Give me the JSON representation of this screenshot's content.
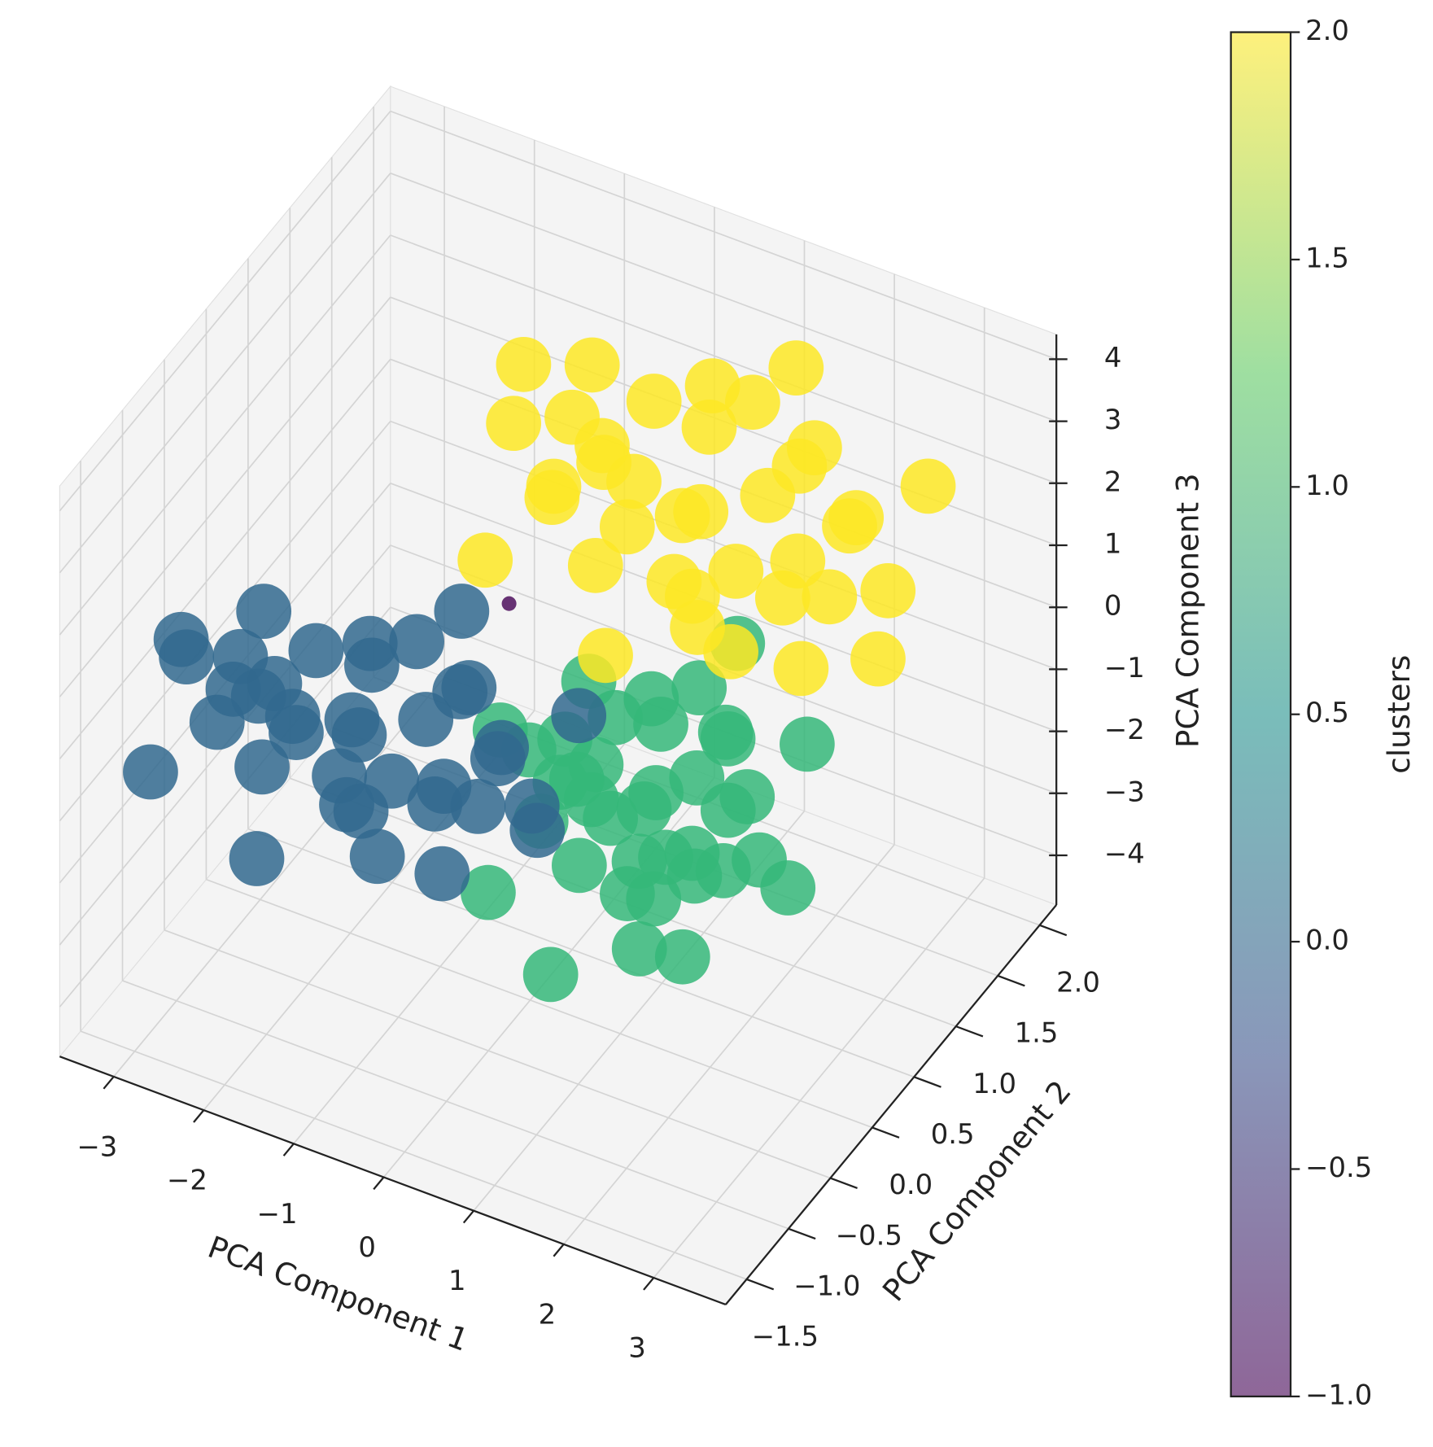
{
  "chart_data": {
    "type": "scatter3d",
    "xlabel": "PCA Component 1",
    "ylabel": "PCA Component 2",
    "zlabel": "PCA Component 3",
    "xlim": [
      -3.6,
      3.8
    ],
    "ylim": [
      -1.75,
      2.2
    ],
    "zlim": [
      -4.8,
      4.4
    ],
    "xticks": [
      {
        "value": -3,
        "label": "−3"
      },
      {
        "value": -2,
        "label": "−2"
      },
      {
        "value": -1,
        "label": "−1"
      },
      0,
      1,
      2,
      3
    ],
    "yticks": [
      {
        "value": -1.5,
        "label": "−1.5"
      },
      {
        "value": -1.0,
        "label": "−1.0"
      },
      {
        "value": -0.5,
        "label": "−0.5"
      },
      {
        "value": 0.0,
        "label": "0.0"
      },
      {
        "value": 0.5,
        "label": "0.5"
      },
      {
        "value": 1.0,
        "label": "1.0"
      },
      {
        "value": 1.5,
        "label": "1.5"
      },
      {
        "value": 2.0,
        "label": "2.0"
      }
    ],
    "zticks": [
      {
        "value": -4,
        "label": "−4"
      },
      {
        "value": -3,
        "label": "−3"
      },
      {
        "value": -2,
        "label": "−2"
      },
      {
        "value": -1,
        "label": "−1"
      },
      0,
      1,
      2,
      3,
      4
    ],
    "grid": true,
    "colorbar": {
      "label": "clusters",
      "lim": [
        -1.0,
        2.0
      ],
      "ticks": [
        {
          "value": -1.0,
          "label": "−1.0"
        },
        {
          "value": -0.5,
          "label": "−0.5"
        },
        {
          "value": 0.0,
          "label": "0.0"
        },
        {
          "value": 0.5,
          "label": "0.5"
        },
        {
          "value": 1.0,
          "label": "1.0"
        },
        {
          "value": 1.5,
          "label": "1.5"
        },
        {
          "value": 2.0,
          "label": "2.0"
        }
      ]
    },
    "series": [
      {
        "value": 1,
        "color": "#35b779",
        "x": [
          0.8,
          1.2,
          0.4,
          1.04,
          0.56,
          1.52,
          0.08,
          0.8,
          0.8,
          1.36,
          0.24,
          1.36,
          0.24,
          1.76,
          -0.16,
          1.68,
          -0.08,
          1.04,
          0.48,
          1.12,
          0.56,
          1.92,
          -0.32,
          1.52,
          0.08,
          1.6,
          0,
          2.08,
          -0.48,
          0.88,
          0.72,
          2.24,
          -0.56,
          1.28,
          0.32,
          1.84,
          -0.24
        ],
        "y": [
          0.5,
          0.7,
          0.3,
          0.5,
          0.9,
          0.3,
          0.7,
          0.7,
          0.3,
          0.9,
          0.1,
          0.5,
          0.7,
          0.7,
          0.3,
          0.5,
          0.5,
          0.9,
          0.5,
          0.1,
          0.7,
          0.3,
          0.9,
          0.7,
          0.5,
          0.1,
          0.7,
          0.5,
          0.5,
          0.5,
          0.7,
          0.9,
          0.1,
          1.1,
          -0.1,
          1.1,
          -0.1
        ],
        "z": [
          -2.1,
          -1.71,
          -1.84,
          -2.75,
          -2.62,
          -2.1,
          -2.1,
          -1.06,
          -3.14,
          -1.32,
          -1.32,
          -2.88,
          -2.88,
          -1.71,
          -2.49,
          -2.62,
          -1.45,
          -0.67,
          -0.8,
          -3.53,
          -3.4,
          -1.19,
          -2.88,
          -0.8,
          -3.4,
          -3.4,
          -0.8,
          -2.23,
          -1.84,
          -0.28,
          -3.92,
          -0.93,
          -3.53,
          -0.15,
          -4.05,
          -3.79,
          -0.41
        ]
      },
      {
        "value": 0,
        "color": "#31688e",
        "x": [
          -1.9,
          -1.3,
          -2.5,
          -1.54,
          -2.26,
          -0.82,
          -2.98,
          -1.9,
          -1.9,
          -1.06,
          -2.74,
          -1.06,
          -2.74,
          -0.46,
          -3.34,
          -0.58,
          -3.22,
          -1.54,
          -2.38,
          -1.42,
          -2.26,
          -0.22,
          -3.58,
          -0.82,
          -2.98,
          -0.7,
          -3.1,
          0.02,
          -3.82,
          -1.78,
          -2.02,
          0.26,
          -3.94,
          -1.18,
          -2.62,
          -0.34,
          -3.46
        ],
        "y": [
          0,
          0.15,
          -0.15,
          0,
          0.3,
          -0.15,
          0.15,
          0.15,
          -0.15,
          0.3,
          -0.3,
          0,
          0.15,
          0.15,
          -0.15,
          0,
          0,
          0.3,
          0,
          -0.3,
          0.15,
          -0.15,
          0.3,
          0.15,
          0,
          -0.3,
          0.15,
          0,
          0,
          0,
          0.15,
          0.3,
          -0.3,
          0.45,
          -0.45,
          0.45,
          -0.45
        ],
        "z": [
          -1.55,
          -1.22,
          -1.33,
          -2.1,
          -1.99,
          -1.55,
          -1.55,
          -0.67,
          -2.43,
          -0.89,
          -0.89,
          -2.21,
          -2.21,
          -1.22,
          -1.88,
          -1.99,
          -1.0,
          -0.34,
          -0.45,
          -2.76,
          -2.65,
          -0.78,
          -2.21,
          -0.45,
          -2.65,
          -2.65,
          -0.45,
          -1.66,
          -1.33,
          -0.01,
          -3.09,
          -0.56,
          -2.76,
          0.1,
          -3.2,
          -2.98,
          -0.12
        ]
      },
      {
        "value": 2,
        "color": "#fde725",
        "x": [
          0.5,
          1.15,
          -0.15,
          0.89,
          0.11,
          1.67,
          -0.67,
          0.5,
          0.5,
          1.41,
          -0.41,
          1.41,
          -0.41,
          2.06,
          -1.06,
          1.93,
          -0.93,
          0.89,
          -0.02,
          1.02,
          0.11,
          2.32,
          -1.32,
          1.67,
          -0.67,
          1.8,
          -0.8,
          2.58,
          -1.58,
          0.63,
          0.37,
          2.84,
          -1.71,
          1.28,
          -0.28,
          2.19,
          -1.19
        ],
        "y": [
          1.5,
          1.6,
          1.4,
          1.5,
          1.7,
          1.4,
          1.6,
          1.6,
          1.4,
          1.7,
          1.3,
          1.5,
          1.6,
          1.6,
          1.4,
          1.5,
          1.5,
          1.7,
          1.5,
          1.3,
          1.6,
          1.4,
          1.7,
          1.6,
          1.5,
          1.3,
          1.6,
          1.5,
          1.5,
          1.5,
          1.6,
          1.7,
          1.3,
          1.8,
          1.2,
          1.8,
          1.2
        ],
        "z": [
          0.9,
          1.35,
          1.2,
          0.15,
          0.3,
          0.9,
          0.9,
          2.1,
          -0.3,
          1.8,
          1.8,
          0,
          0,
          1.35,
          0.45,
          0.3,
          1.65,
          2.55,
          2.4,
          -0.75,
          -0.6,
          1.95,
          0,
          2.4,
          -0.6,
          -0.6,
          2.4,
          0.75,
          1.2,
          3,
          -1.2,
          2.25,
          -0.75,
          3.15,
          -1.35,
          -1.05,
          2.85
        ]
      },
      {
        "value": -1,
        "color": "#440154",
        "x": [
          -0.7
        ],
        "y": [
          0.5
        ],
        "z": [
          0.4
        ]
      }
    ]
  }
}
